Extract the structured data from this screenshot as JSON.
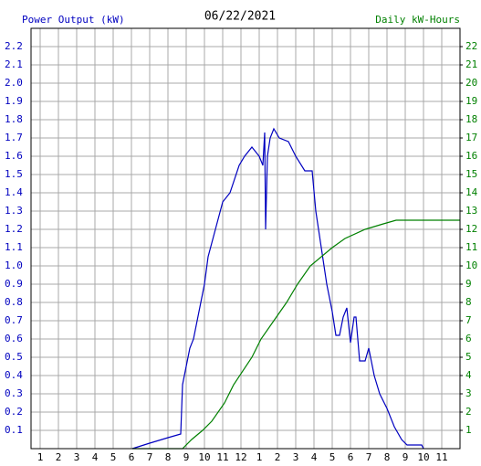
{
  "chart_data": {
    "type": "line",
    "title": "06/22/2021",
    "y_label": "Power Output (kW)",
    "y2_label": "Daily kW-Hours",
    "xlim": [
      0.5,
      24
    ],
    "xticks": [
      1,
      2,
      3,
      4,
      5,
      6,
      7,
      8,
      9,
      10,
      11,
      12,
      {
        "value": 13,
        "label": "1"
      },
      {
        "value": 14,
        "label": "2"
      },
      {
        "value": 15,
        "label": "3"
      },
      {
        "value": 16,
        "label": "4"
      },
      {
        "value": 17,
        "label": "5"
      },
      {
        "value": 18,
        "label": "6"
      },
      {
        "value": 19,
        "label": "7"
      },
      {
        "value": 20,
        "label": "8"
      },
      {
        "value": 21,
        "label": "9"
      },
      {
        "value": 22,
        "label": "10"
      },
      {
        "value": 23,
        "label": "11"
      }
    ],
    "ylim": [
      0,
      2.3
    ],
    "yticks": [
      0.1,
      0.2,
      0.3,
      0.4,
      0.5,
      0.6,
      0.7,
      0.8,
      0.9,
      {
        "value": 1,
        "label": "1.0"
      },
      1.1,
      1.2,
      1.3,
      1.4,
      1.5,
      1.6,
      1.7,
      1.8,
      1.9,
      {
        "value": 2,
        "label": "2.0"
      },
      2.1,
      2.2
    ],
    "y2lim": [
      0,
      23
    ],
    "y2ticks": [
      1,
      2,
      3,
      4,
      5,
      6,
      7,
      8,
      9,
      10,
      11,
      12,
      13,
      14,
      15,
      16,
      17,
      18,
      19,
      20,
      21,
      22
    ],
    "grid": true,
    "series": [
      {
        "color": "#0000c0",
        "x": [
          6.05,
          7,
          8,
          8.7,
          8.8,
          9.2,
          9.4,
          9.7,
          10,
          10.2,
          10.6,
          11,
          11.4,
          11.9,
          12.2,
          12.6,
          13,
          13.2,
          13.3,
          13.35,
          13.45,
          13.6,
          13.8,
          14.1,
          14.6,
          15,
          15.5,
          15.9,
          16.1,
          16.4,
          16.7,
          17,
          17.2,
          17.4,
          17.6,
          17.8,
          18,
          18.2,
          18.3,
          18.5,
          18.8,
          19,
          19.3,
          19.6,
          20,
          20.4,
          20.8,
          21.1,
          21.9,
          22
        ],
        "values": [
          0,
          0.03,
          0.06,
          0.08,
          0.35,
          0.55,
          0.6,
          0.75,
          0.9,
          1.05,
          1.2,
          1.35,
          1.4,
          1.55,
          1.6,
          1.65,
          1.6,
          1.55,
          1.73,
          1.2,
          1.6,
          1.7,
          1.75,
          1.7,
          1.68,
          1.6,
          1.52,
          1.52,
          1.3,
          1.1,
          0.9,
          0.75,
          0.62,
          0.62,
          0.72,
          0.77,
          0.58,
          0.72,
          0.72,
          0.48,
          0.48,
          0.55,
          0.4,
          0.3,
          0.22,
          0.12,
          0.05,
          0.02,
          0.02,
          0
        ]
      },
      {
        "color": "#008000",
        "axis": "y2",
        "x": [
          6.05,
          8.8,
          9.3,
          9.9,
          10.4,
          11.1,
          11.6,
          12.6,
          13.1,
          13.8,
          14.5,
          15.1,
          15.8,
          17,
          17.7,
          18.8,
          19.8,
          20.5,
          24
        ],
        "values": [
          0,
          0,
          0.5,
          1,
          1.5,
          2.5,
          3.5,
          5,
          6,
          7,
          8,
          9,
          10,
          11,
          11.5,
          12,
          12.3,
          12.5,
          12.5
        ]
      }
    ]
  }
}
